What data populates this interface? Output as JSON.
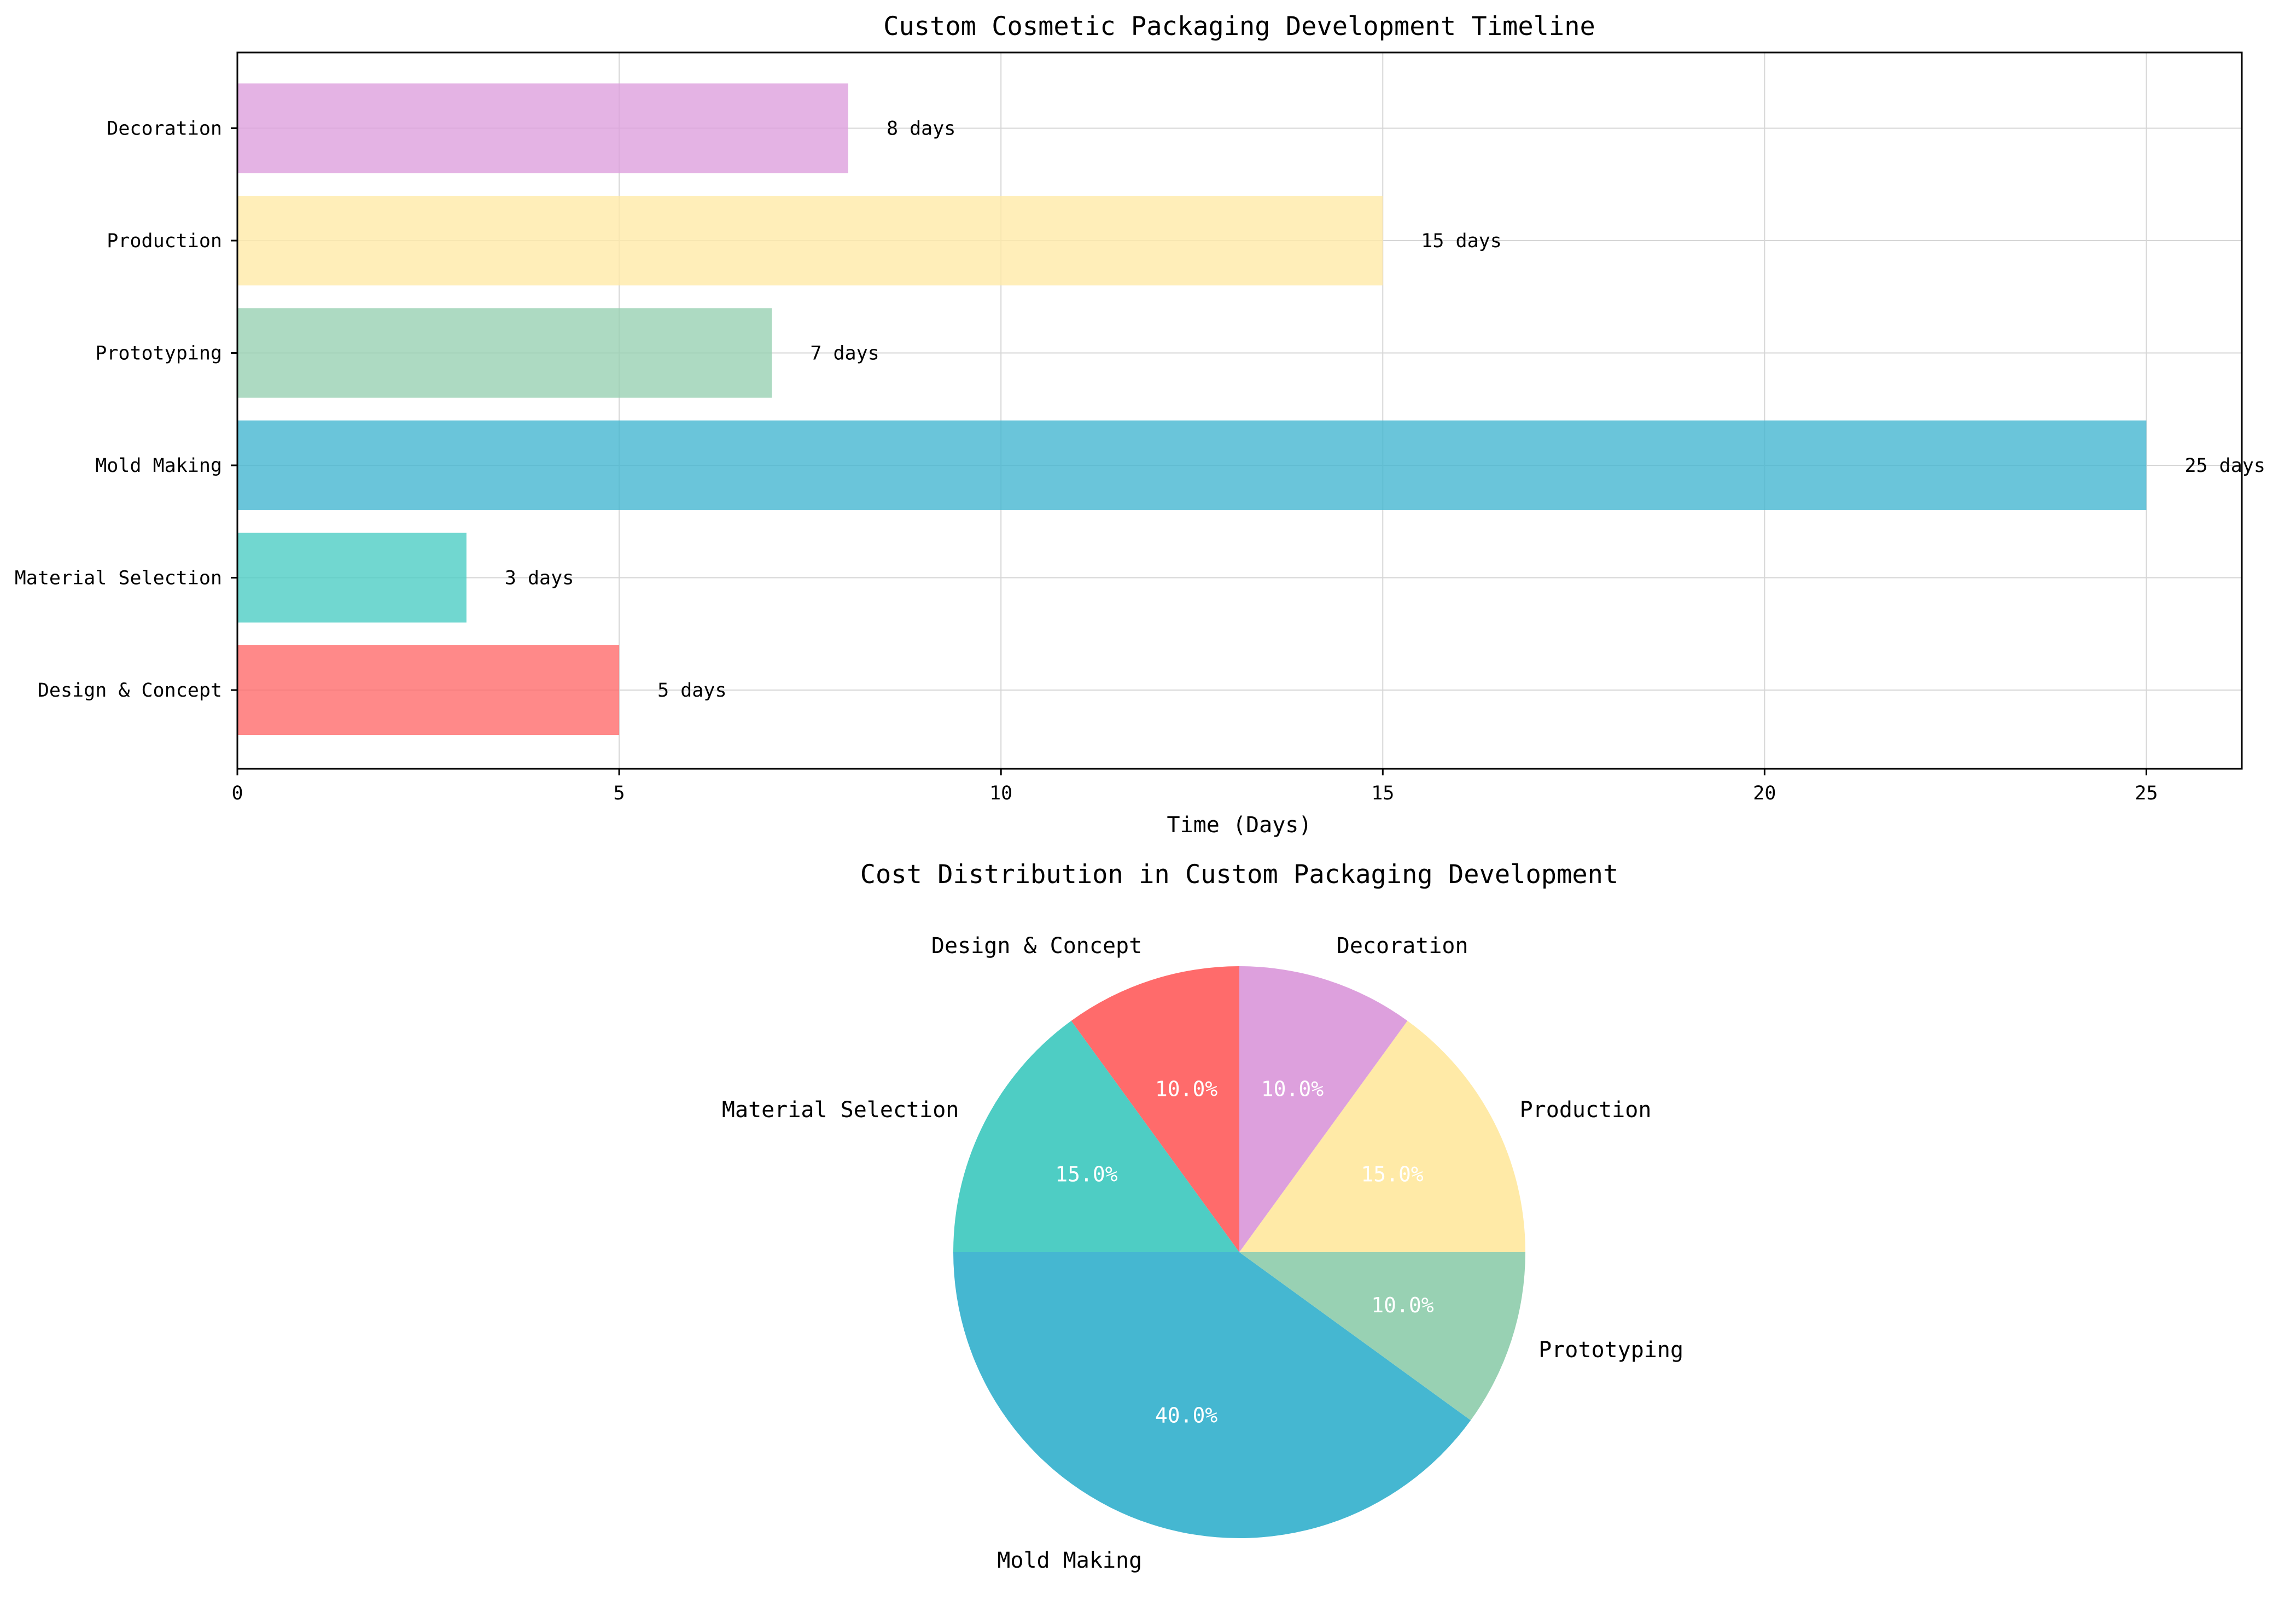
{
  "chart_data": [
    {
      "type": "bar",
      "orientation": "horizontal",
      "title": "Custom Cosmetic Packaging Development Timeline",
      "xlabel": "Time (Days)",
      "ylabel": "",
      "categories": [
        "Design & Concept",
        "Material Selection",
        "Mold Making",
        "Prototyping",
        "Production",
        "Decoration"
      ],
      "values": [
        5,
        3,
        25,
        7,
        15,
        8
      ],
      "value_labels": [
        "5 days",
        "3 days",
        "25 days",
        "7 days",
        "15 days",
        "8 days"
      ],
      "colors": [
        "#FF6B6B",
        "#4ECDC4",
        "#45B7D1",
        "#98D1B3",
        "#FFEAA7",
        "#DDA0DD"
      ],
      "xlim": [
        0,
        26.25
      ],
      "xticks": [
        0,
        5,
        10,
        15,
        20,
        25
      ],
      "grid": true
    },
    {
      "type": "pie",
      "title": "Cost Distribution in Custom Packaging Development",
      "labels": [
        "Design & Concept",
        "Material Selection",
        "Mold Making",
        "Prototyping",
        "Production",
        "Decoration"
      ],
      "values": [
        10.0,
        15.0,
        40.0,
        10.0,
        15.0,
        10.0
      ],
      "pct_labels": [
        "10.0%",
        "15.0%",
        "40.0%",
        "10.0%",
        "15.0%",
        "10.0%"
      ],
      "colors": [
        "#FF6B6B",
        "#4ECDC4",
        "#45B7D1",
        "#98D1B3",
        "#FFEAA7",
        "#DDA0DD"
      ],
      "start_angle": 90,
      "direction": "counterclockwise"
    }
  ]
}
